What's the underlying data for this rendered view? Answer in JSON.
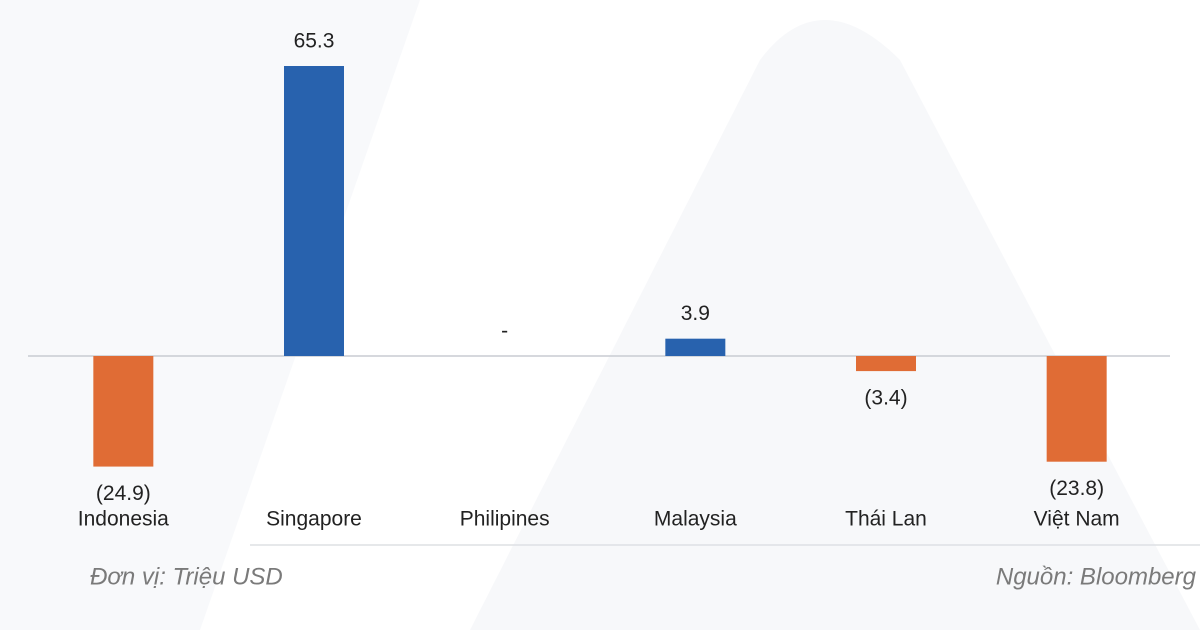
{
  "chart_data": {
    "type": "bar",
    "categories": [
      "Indonesia",
      "Singapore",
      "Philipines",
      "Malaysia",
      "Thái Lan",
      "Việt Nam"
    ],
    "values": [
      -24.9,
      65.3,
      0,
      3.9,
      -3.4,
      -23.8
    ],
    "value_labels": [
      "(24.9)",
      "65.3",
      "-",
      "3.9",
      "(3.4)",
      "(23.8)"
    ],
    "positive_color": "#2862ae",
    "negative_color": "#e06c35",
    "unit_note": "Đơn vị: Triệu USD",
    "source": "Nguồn: Bloomberg"
  }
}
